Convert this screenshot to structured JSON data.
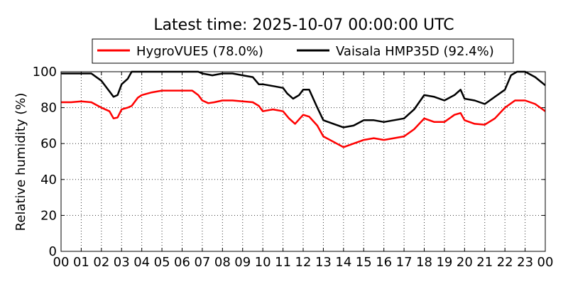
{
  "chart_data": {
    "type": "line",
    "title": "Latest time: 2025-10-07 00:00:00 UTC",
    "ylabel": "Relative humidity (%)",
    "xlabel": "",
    "xlim": [
      0,
      24
    ],
    "ylim": [
      0,
      100
    ],
    "x_tick_values": [
      0,
      1,
      2,
      3,
      4,
      5,
      6,
      7,
      8,
      9,
      10,
      11,
      12,
      13,
      14,
      15,
      16,
      17,
      18,
      19,
      20,
      21,
      22,
      23,
      24
    ],
    "x_tick_labels": [
      "00",
      "01",
      "02",
      "03",
      "04",
      "05",
      "06",
      "07",
      "08",
      "09",
      "10",
      "11",
      "12",
      "13",
      "14",
      "15",
      "16",
      "17",
      "18",
      "19",
      "20",
      "21",
      "22",
      "23",
      "00"
    ],
    "y_ticks": [
      0,
      20,
      40,
      60,
      80,
      100
    ],
    "grid": true,
    "legend_position": "top-center",
    "series": [
      {
        "name": "HygroVUE5 (78.0%)",
        "color": "#ff0000",
        "points": [
          [
            0,
            83
          ],
          [
            0.5,
            83
          ],
          [
            1,
            83.5
          ],
          [
            1.5,
            83
          ],
          [
            2,
            80
          ],
          [
            2.4,
            78
          ],
          [
            2.6,
            74
          ],
          [
            2.8,
            74.5
          ],
          [
            3,
            79
          ],
          [
            3.3,
            80
          ],
          [
            3.5,
            81
          ],
          [
            3.8,
            85.5
          ],
          [
            4,
            87
          ],
          [
            4.5,
            88.5
          ],
          [
            5,
            89.5
          ],
          [
            6,
            89.5
          ],
          [
            6.5,
            89.5
          ],
          [
            6.8,
            87
          ],
          [
            7,
            84
          ],
          [
            7.3,
            82.5
          ],
          [
            7.6,
            83
          ],
          [
            8,
            84
          ],
          [
            8.5,
            84
          ],
          [
            9,
            83.5
          ],
          [
            9.5,
            83
          ],
          [
            9.8,
            81
          ],
          [
            10,
            78
          ],
          [
            10.5,
            79
          ],
          [
            11,
            78
          ],
          [
            11.3,
            74
          ],
          [
            11.6,
            71
          ],
          [
            12,
            76
          ],
          [
            12.3,
            75
          ],
          [
            12.7,
            70
          ],
          [
            13,
            64
          ],
          [
            13.5,
            61
          ],
          [
            14,
            58
          ],
          [
            14.5,
            60
          ],
          [
            15,
            62
          ],
          [
            15.5,
            63
          ],
          [
            16,
            62
          ],
          [
            16.5,
            63
          ],
          [
            17,
            64
          ],
          [
            17.5,
            68
          ],
          [
            18,
            74
          ],
          [
            18.5,
            72
          ],
          [
            19,
            72
          ],
          [
            19.5,
            76
          ],
          [
            19.8,
            77
          ],
          [
            20,
            73
          ],
          [
            20.5,
            71
          ],
          [
            21,
            70.5
          ],
          [
            21.5,
            74
          ],
          [
            22,
            80
          ],
          [
            22.5,
            84
          ],
          [
            23,
            84
          ],
          [
            23.5,
            82
          ],
          [
            24,
            78
          ]
        ]
      },
      {
        "name": "Vaisala HMP35D (92.4%)",
        "color": "#000000",
        "points": [
          [
            0,
            99
          ],
          [
            0.5,
            99
          ],
          [
            1,
            99
          ],
          [
            1.5,
            99
          ],
          [
            2,
            95
          ],
          [
            2.4,
            89
          ],
          [
            2.6,
            86
          ],
          [
            2.8,
            87
          ],
          [
            3,
            93
          ],
          [
            3.3,
            96
          ],
          [
            3.5,
            100
          ],
          [
            4,
            100
          ],
          [
            5,
            100
          ],
          [
            6,
            100
          ],
          [
            6.8,
            100
          ],
          [
            7,
            99
          ],
          [
            7.5,
            98
          ],
          [
            8,
            99
          ],
          [
            8.5,
            99
          ],
          [
            9,
            98
          ],
          [
            9.5,
            97
          ],
          [
            9.8,
            93
          ],
          [
            10,
            93
          ],
          [
            10.5,
            92
          ],
          [
            11,
            91
          ],
          [
            11.2,
            88
          ],
          [
            11.5,
            85
          ],
          [
            11.8,
            87
          ],
          [
            12,
            90
          ],
          [
            12.3,
            90
          ],
          [
            12.7,
            80
          ],
          [
            13,
            73
          ],
          [
            13.5,
            71
          ],
          [
            14,
            69
          ],
          [
            14.5,
            70
          ],
          [
            15,
            73
          ],
          [
            15.5,
            73
          ],
          [
            16,
            72
          ],
          [
            16.5,
            73
          ],
          [
            17,
            74
          ],
          [
            17.5,
            79
          ],
          [
            18,
            87
          ],
          [
            18.5,
            86
          ],
          [
            19,
            84
          ],
          [
            19.5,
            87
          ],
          [
            19.8,
            90
          ],
          [
            20,
            85
          ],
          [
            20.5,
            84
          ],
          [
            21,
            82
          ],
          [
            21.5,
            86
          ],
          [
            22,
            90
          ],
          [
            22.3,
            98
          ],
          [
            22.6,
            100
          ],
          [
            23,
            100
          ],
          [
            23.5,
            97
          ],
          [
            24,
            92.4
          ]
        ]
      }
    ]
  }
}
